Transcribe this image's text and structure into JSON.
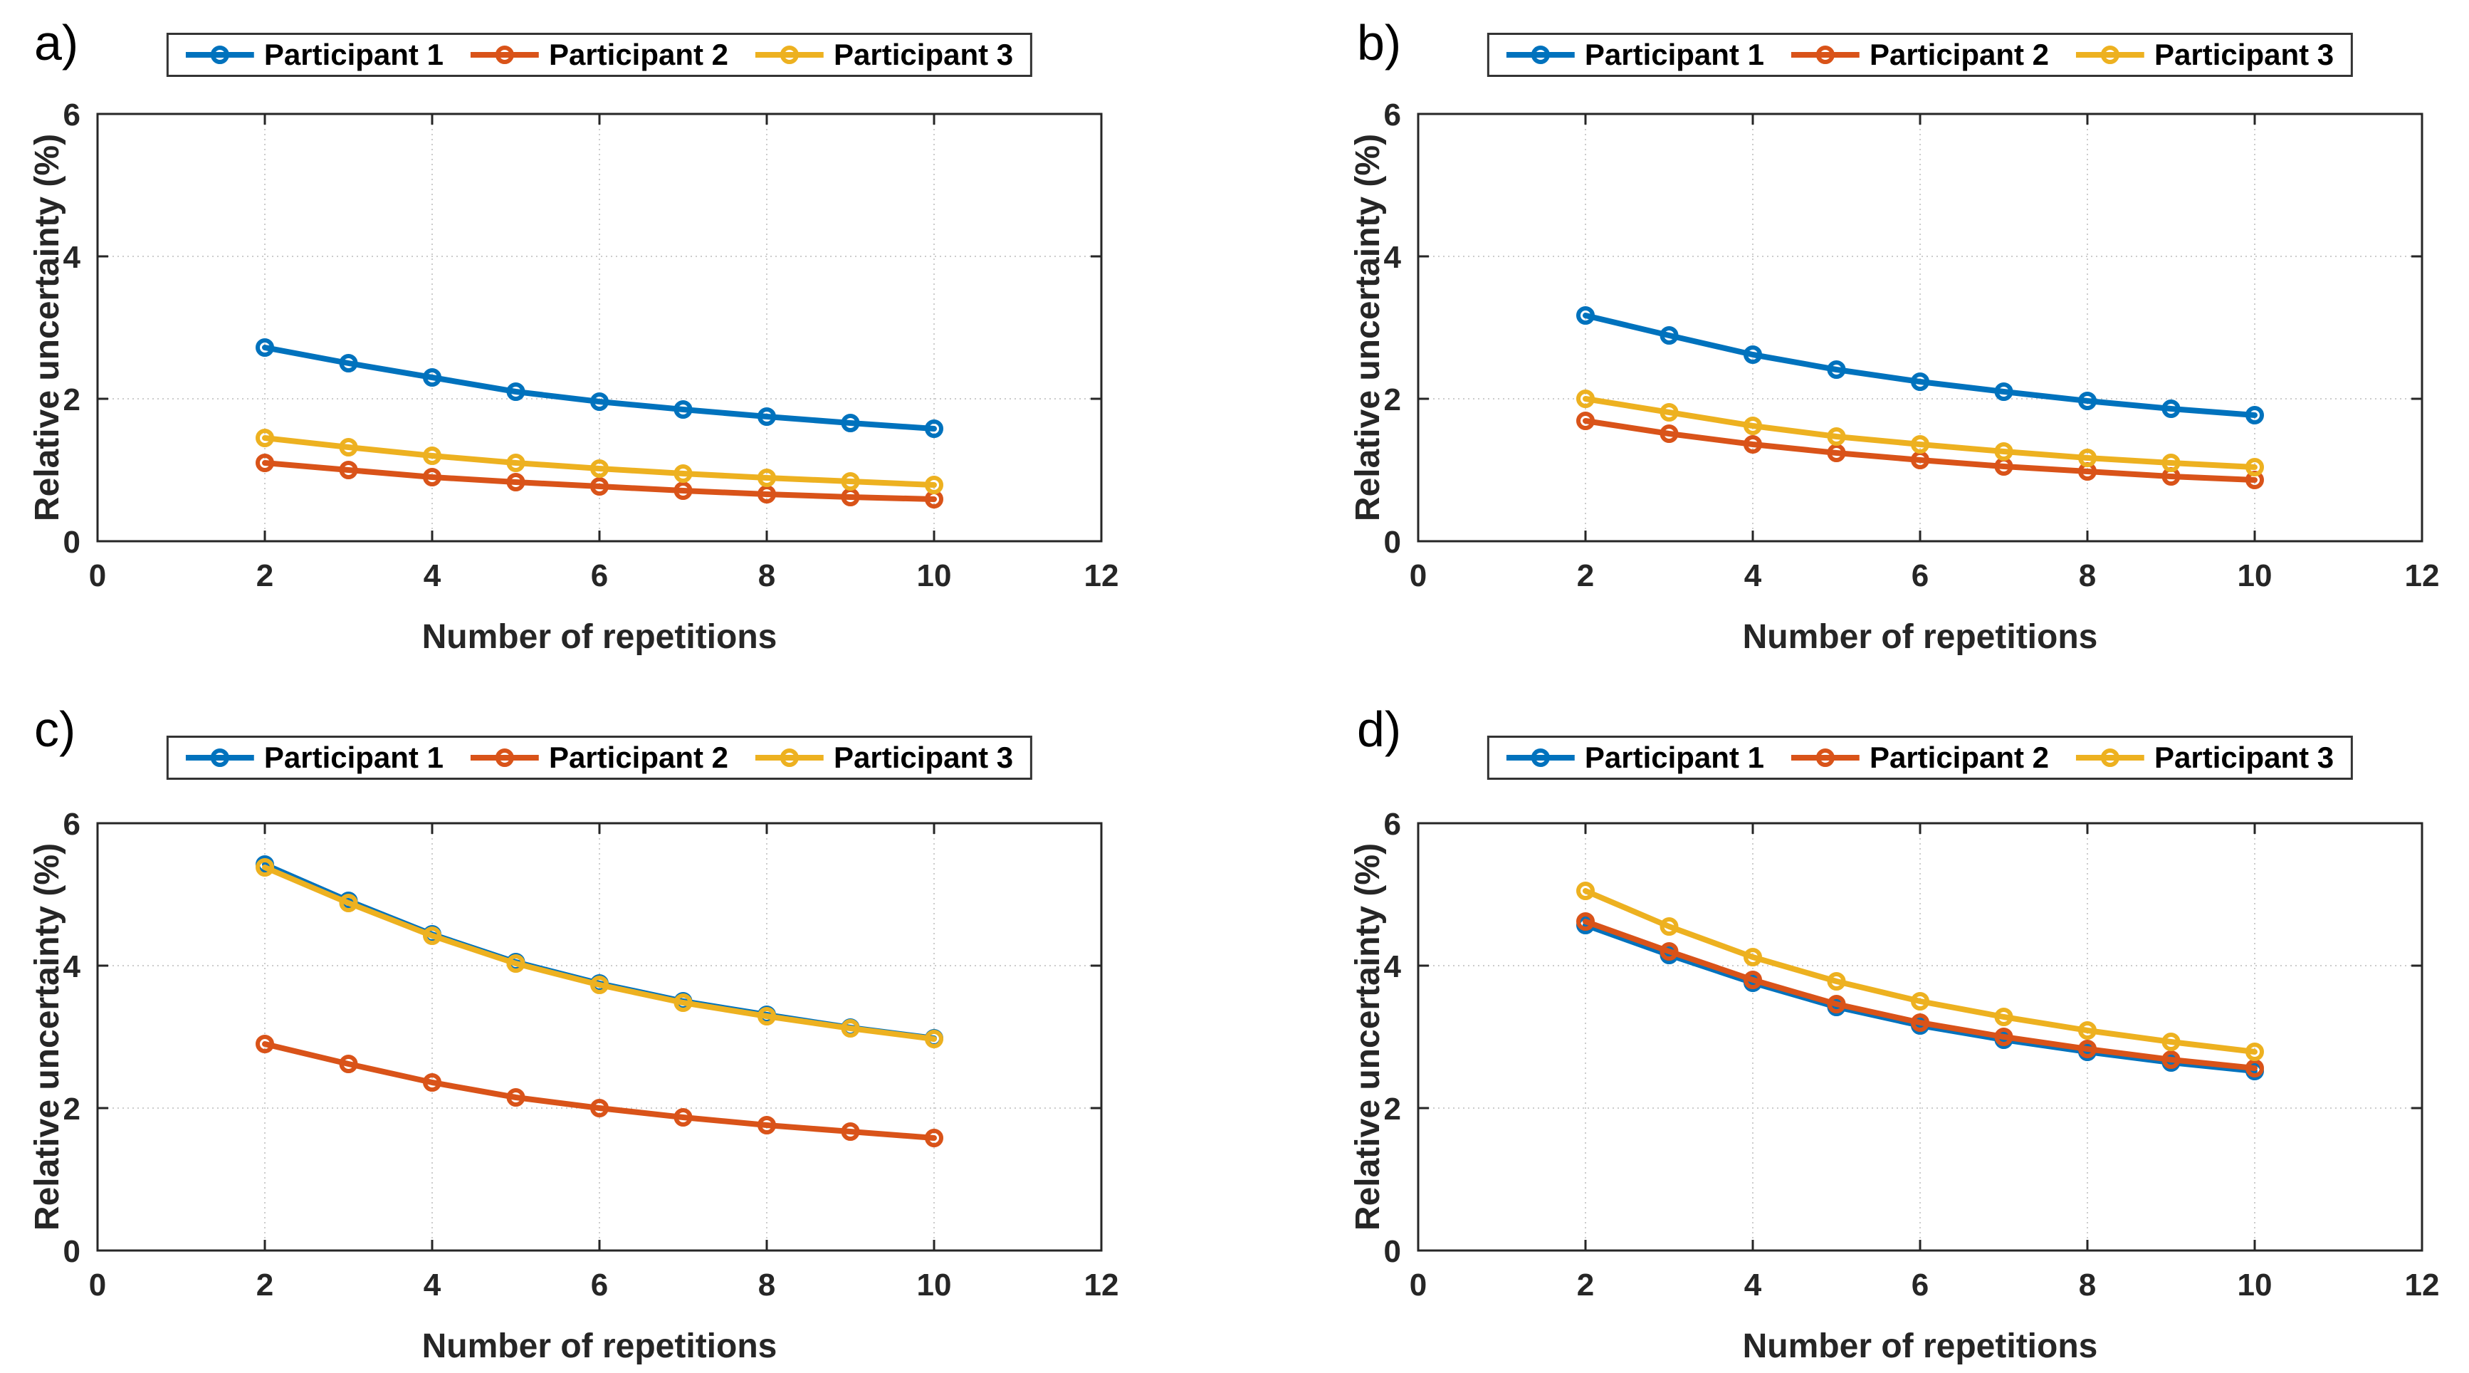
{
  "page": {
    "background": "#ffffff"
  },
  "style": {
    "axis_color": "#262626",
    "tick_label_color": "#262626",
    "grid_color": "#cccccc",
    "legend_border_color": "#333333",
    "legend_background": "#ffffff",
    "series_colors": {
      "participant1": "#0072BD",
      "participant2": "#D95319",
      "participant3": "#EDB120"
    }
  },
  "legend": {
    "labels": [
      "Participant 1",
      "Participant 2",
      "Participant 3"
    ]
  },
  "chart_data": [
    {
      "type": "line",
      "panel_label": "a)",
      "xlabel": "Number of repetitions",
      "ylabel": "Relative uncertainty (%)",
      "xlim": [
        0,
        12
      ],
      "ylim": [
        0,
        6
      ],
      "xticks": [
        0,
        2,
        4,
        6,
        8,
        10,
        12
      ],
      "yticks": [
        0,
        2,
        4,
        6
      ],
      "grid": true,
      "legend_position": "top-center",
      "x": [
        2,
        3,
        4,
        5,
        6,
        7,
        8,
        9,
        10
      ],
      "series": [
        {
          "name": "Participant 1",
          "color": "#0072BD",
          "values": [
            2.72,
            2.5,
            2.3,
            2.1,
            1.96,
            1.85,
            1.75,
            1.66,
            1.58
          ]
        },
        {
          "name": "Participant 2",
          "color": "#D95319",
          "values": [
            1.1,
            1.0,
            0.9,
            0.83,
            0.77,
            0.71,
            0.66,
            0.62,
            0.59
          ]
        },
        {
          "name": "Participant 3",
          "color": "#EDB120",
          "values": [
            1.45,
            1.32,
            1.2,
            1.1,
            1.02,
            0.95,
            0.89,
            0.84,
            0.79
          ]
        }
      ]
    },
    {
      "type": "line",
      "panel_label": "b)",
      "xlabel": "Number of repetitions",
      "ylabel": "Relative uncertainty (%)",
      "xlim": [
        0,
        12
      ],
      "ylim": [
        0,
        6
      ],
      "xticks": [
        0,
        2,
        4,
        6,
        8,
        10,
        12
      ],
      "yticks": [
        0,
        2,
        4,
        6
      ],
      "grid": true,
      "legend_position": "top-center",
      "x": [
        2,
        3,
        4,
        5,
        6,
        7,
        8,
        9,
        10
      ],
      "series": [
        {
          "name": "Participant 1",
          "color": "#0072BD",
          "values": [
            3.17,
            2.89,
            2.62,
            2.41,
            2.24,
            2.1,
            1.97,
            1.86,
            1.77
          ]
        },
        {
          "name": "Participant 2",
          "color": "#D95319",
          "values": [
            1.69,
            1.51,
            1.36,
            1.24,
            1.14,
            1.05,
            0.98,
            0.91,
            0.86
          ]
        },
        {
          "name": "Participant 3",
          "color": "#EDB120",
          "values": [
            2.0,
            1.81,
            1.62,
            1.47,
            1.36,
            1.26,
            1.17,
            1.1,
            1.04
          ]
        }
      ]
    },
    {
      "type": "line",
      "panel_label": "c)",
      "xlabel": "Number of repetitions",
      "ylabel": "Relative uncertainty (%)",
      "xlim": [
        0,
        12
      ],
      "ylim": [
        0,
        6
      ],
      "xticks": [
        0,
        2,
        4,
        6,
        8,
        10,
        12
      ],
      "yticks": [
        0,
        2,
        4,
        6
      ],
      "grid": true,
      "legend_position": "top-center",
      "x": [
        2,
        3,
        4,
        5,
        6,
        7,
        8,
        9,
        10
      ],
      "series": [
        {
          "name": "Participant 1",
          "color": "#0072BD",
          "values": [
            5.42,
            4.91,
            4.44,
            4.05,
            3.75,
            3.5,
            3.31,
            3.13,
            2.98
          ]
        },
        {
          "name": "Participant 2",
          "color": "#D95319",
          "values": [
            2.9,
            2.62,
            2.36,
            2.15,
            2.0,
            1.87,
            1.76,
            1.67,
            1.58
          ]
        },
        {
          "name": "Participant 3",
          "color": "#EDB120",
          "values": [
            5.38,
            4.88,
            4.42,
            4.03,
            3.73,
            3.48,
            3.29,
            3.12,
            2.97
          ]
        }
      ]
    },
    {
      "type": "line",
      "panel_label": "d)",
      "xlabel": "Number of repetitions",
      "ylabel": "Relative uncertainty (%)",
      "xlim": [
        0,
        12
      ],
      "ylim": [
        0,
        6
      ],
      "xticks": [
        0,
        2,
        4,
        6,
        8,
        10,
        12
      ],
      "yticks": [
        0,
        2,
        4,
        6
      ],
      "grid": true,
      "legend_position": "top-center",
      "x": [
        2,
        3,
        4,
        5,
        6,
        7,
        8,
        9,
        10
      ],
      "series": [
        {
          "name": "Participant 1",
          "color": "#0072BD",
          "values": [
            4.57,
            4.15,
            3.76,
            3.42,
            3.16,
            2.96,
            2.79,
            2.64,
            2.52
          ]
        },
        {
          "name": "Participant 2",
          "color": "#D95319",
          "values": [
            4.62,
            4.2,
            3.8,
            3.46,
            3.2,
            3.0,
            2.83,
            2.68,
            2.56
          ]
        },
        {
          "name": "Participant 3",
          "color": "#EDB120",
          "values": [
            5.05,
            4.55,
            4.12,
            3.78,
            3.5,
            3.28,
            3.09,
            2.93,
            2.79
          ]
        }
      ]
    }
  ]
}
